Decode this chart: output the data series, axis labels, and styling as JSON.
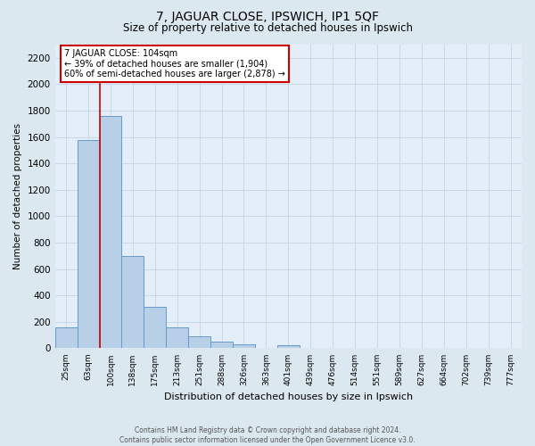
{
  "title": "7, JAGUAR CLOSE, IPSWICH, IP1 5QF",
  "subtitle": "Size of property relative to detached houses in Ipswich",
  "xlabel": "Distribution of detached houses by size in Ipswich",
  "ylabel": "Number of detached properties",
  "bin_labels": [
    "25sqm",
    "63sqm",
    "100sqm",
    "138sqm",
    "175sqm",
    "213sqm",
    "251sqm",
    "288sqm",
    "326sqm",
    "363sqm",
    "401sqm",
    "439sqm",
    "476sqm",
    "514sqm",
    "551sqm",
    "589sqm",
    "627sqm",
    "664sqm",
    "702sqm",
    "739sqm",
    "777sqm"
  ],
  "bar_values": [
    160,
    1580,
    1760,
    700,
    315,
    155,
    90,
    50,
    30,
    0,
    20,
    0,
    0,
    0,
    0,
    0,
    0,
    0,
    0,
    0,
    0
  ],
  "bar_color": "#b8cfe8",
  "bar_edge_color": "#6699cc",
  "property_line_color": "#cc0000",
  "ylim": [
    0,
    2300
  ],
  "yticks": [
    0,
    200,
    400,
    600,
    800,
    1000,
    1200,
    1400,
    1600,
    1800,
    2000,
    2200
  ],
  "annotation_title": "7 JAGUAR CLOSE: 104sqm",
  "annotation_line1": "← 39% of detached houses are smaller (1,904)",
  "annotation_line2": "60% of semi-detached houses are larger (2,878) →",
  "annotation_box_color": "#ffffff",
  "annotation_box_edge": "#cc0000",
  "grid_color": "#c8d8e8",
  "background_color": "#dce8f0",
  "plot_bg_color": "#e4eef8",
  "footer_line1": "Contains HM Land Registry data © Crown copyright and database right 2024.",
  "footer_line2": "Contains public sector information licensed under the Open Government Licence v3.0.",
  "title_fontsize": 10,
  "subtitle_fontsize": 8.5,
  "xlabel_fontsize": 8,
  "ylabel_fontsize": 7.5,
  "tick_fontsize": 6.5,
  "ytick_fontsize": 7.5,
  "annotation_fontsize": 7,
  "footer_fontsize": 5.5
}
